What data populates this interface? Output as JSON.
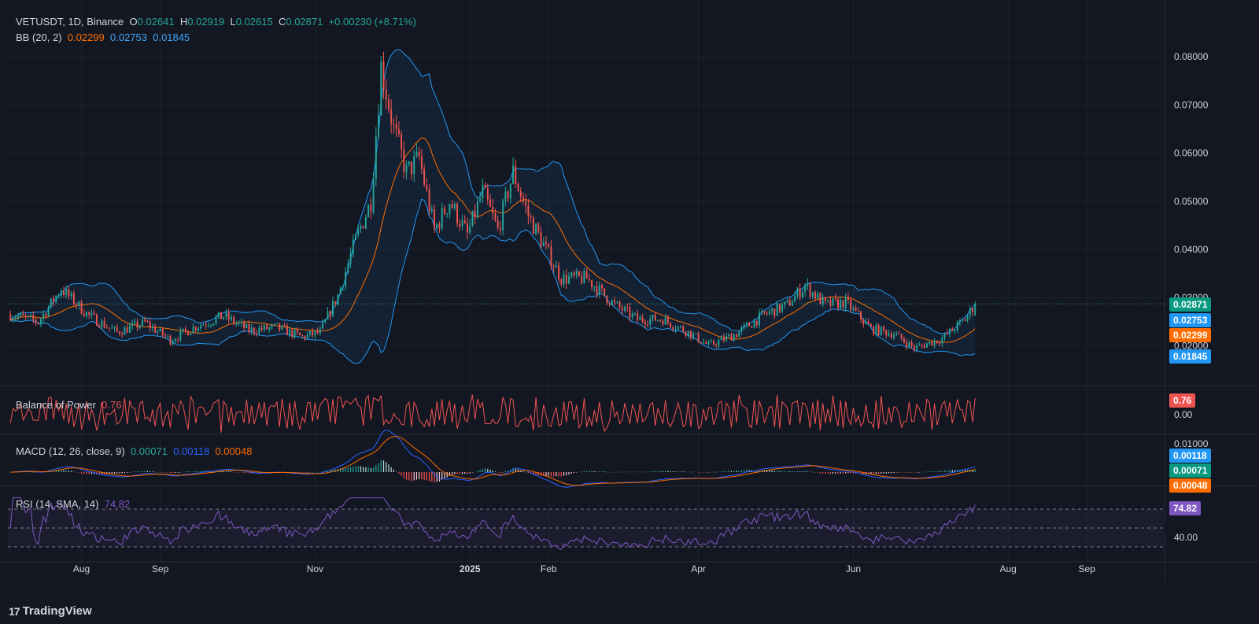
{
  "header": {
    "symbol": "VETUSDT, 1D, Binance",
    "o_label": "O",
    "o_val": "0.02641",
    "h_label": "H",
    "h_val": "0.02919",
    "l_label": "L",
    "l_val": "0.02615",
    "c_label": "C",
    "c_val": "0.02871",
    "change": "+0.00230 (+8.71%)"
  },
  "bb_legend": {
    "name": "BB (20, 2)",
    "basis": "0.02299",
    "upper": "0.02753",
    "lower": "0.01845"
  },
  "bop_legend": {
    "name": "Balance of Power",
    "value": "0.76"
  },
  "macd_legend": {
    "name": "MACD (12, 26, close, 9)",
    "hist": "0.00071",
    "macd": "0.00118",
    "signal": "0.00048"
  },
  "rsi_legend": {
    "name": "RSI (14, SMA, 14)",
    "value": "74.82"
  },
  "price_axis": {
    "ticks": [
      "0.08000",
      "0.07000",
      "0.06000",
      "0.05000",
      "0.04000",
      "0.03000",
      "0.02000"
    ],
    "tags": {
      "last": "0.02871",
      "bb_upper": "0.02753",
      "bb_basis": "0.02299",
      "bb_lower": "0.01845"
    }
  },
  "bop_axis": {
    "tag": "0.76",
    "zero": "0.00"
  },
  "macd_axis": {
    "top": "0.01000",
    "tag_macd": "0.00118",
    "tag_hist": "0.00071",
    "tag_signal": "0.00048"
  },
  "rsi_axis": {
    "tag": "74.82",
    "tick": "40.00"
  },
  "time_axis": [
    "Aug",
    "Sep",
    "Nov",
    "2025",
    "Feb",
    "Apr",
    "Jun",
    "Aug",
    "Sep"
  ],
  "footer": {
    "brand": "TradingView"
  },
  "colors": {
    "background": "#131722",
    "up": "#26a69a",
    "down": "#ef5350",
    "bb_band": "#2196f3",
    "bb_basis": "#ff6d00",
    "rsi": "#7e57c2",
    "macd": "#2962ff",
    "signal": "#ff6d00"
  },
  "chart_data": {
    "type": "candlestick",
    "symbol": "VETUSDT",
    "interval": "1D",
    "exchange": "Binance",
    "ylim": [
      0.015,
      0.082
    ],
    "last_ohlc": {
      "open": 0.02641,
      "high": 0.02919,
      "low": 0.02615,
      "close": 0.02871
    },
    "close_path": [
      [
        "2024-07-04",
        0.0265
      ],
      [
        "2024-07-15",
        0.025
      ],
      [
        "2024-07-24",
        0.0318
      ],
      [
        "2024-08-04",
        0.0262
      ],
      [
        "2024-08-15",
        0.0228
      ],
      [
        "2024-08-26",
        0.0248
      ],
      [
        "2024-09-05",
        0.0212
      ],
      [
        "2024-09-15",
        0.024
      ],
      [
        "2024-09-26",
        0.0262
      ],
      [
        "2024-10-06",
        0.0232
      ],
      [
        "2024-10-17",
        0.0238
      ],
      [
        "2024-10-27",
        0.0218
      ],
      [
        "2024-11-03",
        0.0228
      ],
      [
        "2024-11-10",
        0.0305
      ],
      [
        "2024-11-17",
        0.042
      ],
      [
        "2024-11-23",
        0.05
      ],
      [
        "2024-11-27",
        0.078
      ],
      [
        "2024-12-02",
        0.065
      ],
      [
        "2024-12-07",
        0.056
      ],
      [
        "2024-12-12",
        0.059
      ],
      [
        "2024-12-18",
        0.044
      ],
      [
        "2024-12-24",
        0.05
      ],
      [
        "2024-12-31",
        0.043
      ],
      [
        "2025-01-06",
        0.052
      ],
      [
        "2025-01-12",
        0.044
      ],
      [
        "2025-01-18",
        0.056
      ],
      [
        "2025-01-24",
        0.047
      ],
      [
        "2025-01-31",
        0.04
      ],
      [
        "2025-02-06",
        0.034
      ],
      [
        "2025-02-16",
        0.034
      ],
      [
        "2025-02-27",
        0.0285
      ],
      [
        "2025-03-08",
        0.0255
      ],
      [
        "2025-03-18",
        0.0255
      ],
      [
        "2025-03-29",
        0.0225
      ],
      [
        "2025-04-05",
        0.02
      ],
      [
        "2025-04-16",
        0.0225
      ],
      [
        "2025-04-27",
        0.0265
      ],
      [
        "2025-05-06",
        0.0285
      ],
      [
        "2025-05-13",
        0.0325
      ],
      [
        "2025-05-21",
        0.0285
      ],
      [
        "2025-05-29",
        0.029
      ],
      [
        "2025-06-08",
        0.0235
      ],
      [
        "2025-06-17",
        0.0225
      ],
      [
        "2025-06-25",
        0.0195
      ],
      [
        "2025-07-06",
        0.0215
      ],
      [
        "2025-07-15",
        0.0255
      ],
      [
        "2025-07-19",
        0.0287
      ]
    ],
    "bollinger": {
      "length": 20,
      "mult": 2,
      "last_basis": 0.02299,
      "last_upper": 0.02753,
      "last_lower": 0.01845
    },
    "balance_of_power": {
      "last": 0.76
    },
    "macd": {
      "fast": 12,
      "slow": 26,
      "signal": 9,
      "last_macd": 0.00118,
      "last_signal": 0.00048,
      "last_hist": 0.00071
    },
    "rsi": {
      "length": 14,
      "last": 74.82
    }
  }
}
